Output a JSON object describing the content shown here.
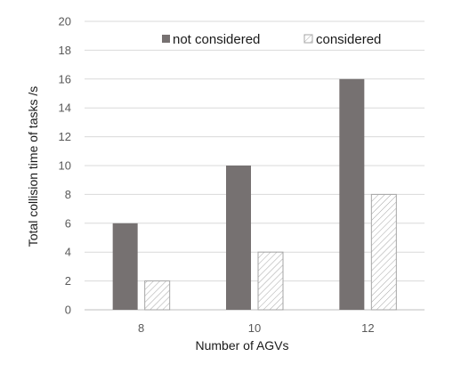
{
  "chart_data": {
    "type": "bar",
    "title": "",
    "xlabel": "Number of AGVs",
    "ylabel": "Total collision time of tasks /s",
    "categories": [
      "8",
      "10",
      "12"
    ],
    "series": [
      {
        "name": "not considered",
        "values": [
          6,
          10,
          16
        ],
        "color": "#767171",
        "pattern": "solid"
      },
      {
        "name": "considered",
        "values": [
          2,
          4,
          8
        ],
        "color": "#ffffff",
        "pattern": "diagonal-hatch"
      }
    ],
    "ylim": [
      0,
      20
    ],
    "yticks": [
      "0",
      "2",
      "4",
      "6",
      "8",
      "10",
      "12",
      "14",
      "16",
      "18",
      "20"
    ],
    "grid": true,
    "legend_position": "top"
  }
}
